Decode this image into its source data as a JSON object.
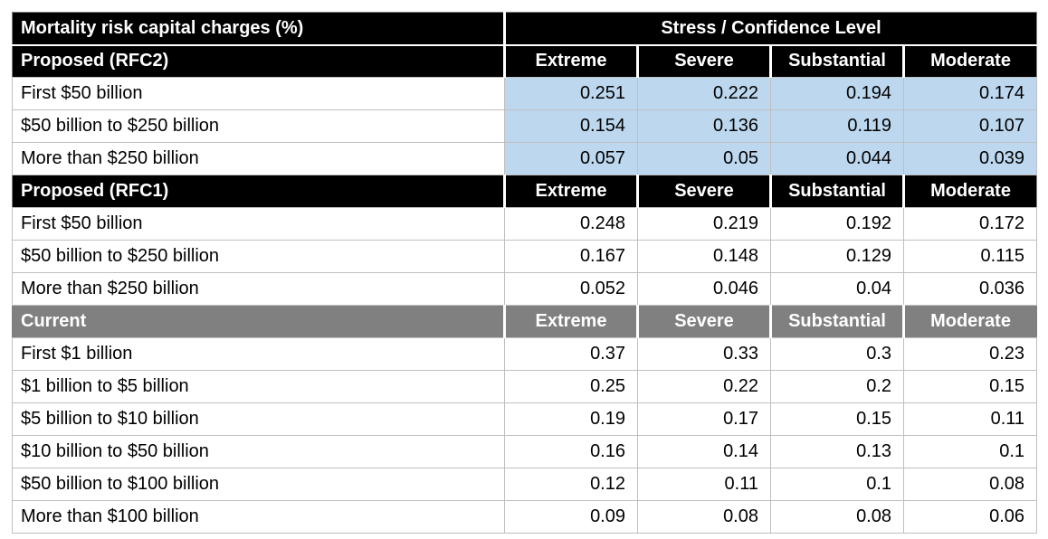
{
  "table": {
    "title": "Mortality risk capital charges (%)",
    "header_right": "Stress / Confidence Level",
    "columns": [
      "Extreme",
      "Severe",
      "Substantial",
      "Moderate"
    ],
    "colors": {
      "black_header_bg": "#000000",
      "gray_header_bg": "#808080",
      "highlight_bg": "#BDD7EE",
      "header_text": "#FFFFFF",
      "body_text": "#000000",
      "grid_line": "#BFBFBF",
      "outer_border": "#808080",
      "page_bg": "#FFFFFF"
    },
    "sections": [
      {
        "label": "Proposed (RFC2)",
        "header_style": "black",
        "value_highlight": true,
        "rows": [
          {
            "label": "First $50 billion",
            "values": [
              "0.251",
              "0.222",
              "0.194",
              "0.174"
            ]
          },
          {
            "label": "$50 billion to $250 billion",
            "values": [
              "0.154",
              "0.136",
              "0.119",
              "0.107"
            ]
          },
          {
            "label": "More than $250 billion",
            "values": [
              "0.057",
              "0.05",
              "0.044",
              "0.039"
            ]
          }
        ]
      },
      {
        "label": "Proposed (RFC1)",
        "header_style": "black",
        "value_highlight": false,
        "rows": [
          {
            "label": "First $50 billion",
            "values": [
              "0.248",
              "0.219",
              "0.192",
              "0.172"
            ]
          },
          {
            "label": "$50 billion to $250 billion",
            "values": [
              "0.167",
              "0.148",
              "0.129",
              "0.115"
            ]
          },
          {
            "label": "More than $250 billion",
            "values": [
              "0.052",
              "0.046",
              "0.04",
              "0.036"
            ]
          }
        ]
      },
      {
        "label": "Current",
        "header_style": "gray",
        "value_highlight": false,
        "rows": [
          {
            "label": "First $1 billion",
            "values": [
              "0.37",
              "0.33",
              "0.3",
              "0.23"
            ]
          },
          {
            "label": "$1 billion to $5 billion",
            "values": [
              "0.25",
              "0.22",
              "0.2",
              "0.15"
            ]
          },
          {
            "label": "$5 billion to $10 billion",
            "values": [
              "0.19",
              "0.17",
              "0.15",
              "0.11"
            ]
          },
          {
            "label": "$10 billion to $50 billion",
            "values": [
              "0.16",
              "0.14",
              "0.13",
              "0.1"
            ]
          },
          {
            "label": "$50 billion to $100 billion",
            "values": [
              "0.12",
              "0.11",
              "0.1",
              "0.08"
            ]
          },
          {
            "label": "More than $100 billion",
            "values": [
              "0.09",
              "0.08",
              "0.08",
              "0.06"
            ]
          }
        ]
      }
    ]
  },
  "chart_data": {
    "type": "table",
    "title": "Mortality risk capital charges (%)",
    "column_group_header": "Stress / Confidence Level",
    "columns": [
      "Extreme",
      "Severe",
      "Substantial",
      "Moderate"
    ],
    "sections": [
      {
        "name": "Proposed (RFC2)",
        "rows": [
          [
            "First $50 billion",
            0.251,
            0.222,
            0.194,
            0.174
          ],
          [
            "$50 billion to $250 billion",
            0.154,
            0.136,
            0.119,
            0.107
          ],
          [
            "More than $250 billion",
            0.057,
            0.05,
            0.044,
            0.039
          ]
        ]
      },
      {
        "name": "Proposed (RFC1)",
        "rows": [
          [
            "First $50 billion",
            0.248,
            0.219,
            0.192,
            0.172
          ],
          [
            "$50 billion to $250 billion",
            0.167,
            0.148,
            0.129,
            0.115
          ],
          [
            "More than $250 billion",
            0.052,
            0.046,
            0.04,
            0.036
          ]
        ]
      },
      {
        "name": "Current",
        "rows": [
          [
            "First $1 billion",
            0.37,
            0.33,
            0.3,
            0.23
          ],
          [
            "$1 billion to $5 billion",
            0.25,
            0.22,
            0.2,
            0.15
          ],
          [
            "$5 billion to $10 billion",
            0.19,
            0.17,
            0.15,
            0.11
          ],
          [
            "$10 billion to $50 billion",
            0.16,
            0.14,
            0.13,
            0.1
          ],
          [
            "$50 billion to $100 billion",
            0.12,
            0.11,
            0.1,
            0.08
          ],
          [
            "More than $100 billion",
            0.09,
            0.08,
            0.08,
            0.06
          ]
        ]
      }
    ]
  }
}
